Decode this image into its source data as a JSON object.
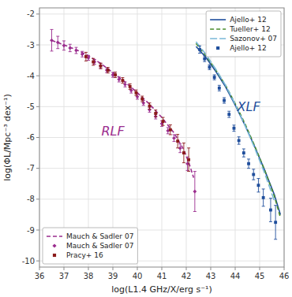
{
  "chart_data": {
    "type": "line",
    "xlabel": "log(L1.4 GHz/X/erg s⁻¹)",
    "ylabel": "log(ΦL/Mpc⁻³ dex⁻¹)",
    "xlim": [
      36,
      46
    ],
    "ylim": [
      -10.2,
      -1.8
    ],
    "xticks": [
      36,
      37,
      38,
      39,
      40,
      41,
      42,
      43,
      44,
      45,
      46
    ],
    "yticks": [
      -2,
      -3,
      -4,
      -5,
      -6,
      -7,
      -8,
      -9,
      -10
    ],
    "grid": true,
    "series": [
      {
        "name": "Ajello+ 12",
        "type": "line",
        "line_style": "solid",
        "color": "#1f4e9c",
        "legend": "upper right",
        "x": [
          42.4,
          42.8,
          43.2,
          43.6,
          44.0,
          44.4,
          44.8,
          45.2,
          45.6,
          45.85
        ],
        "values": [
          -3.05,
          -3.4,
          -3.85,
          -4.35,
          -4.95,
          -5.6,
          -6.3,
          -7.05,
          -7.85,
          -8.5
        ]
      },
      {
        "name": "Tueller+ 12",
        "type": "line",
        "line_style": "dashed",
        "color": "#4a8c2a",
        "legend": "upper right",
        "x": [
          42.4,
          42.8,
          43.2,
          43.6,
          44.0,
          44.4,
          44.8,
          45.2,
          45.6,
          45.85
        ],
        "values": [
          -2.95,
          -3.35,
          -3.8,
          -4.3,
          -4.9,
          -5.55,
          -6.28,
          -7.05,
          -7.9,
          -8.6
        ]
      },
      {
        "name": "Sazonov+ 07",
        "type": "line",
        "line_style": "longdash",
        "color": "#7ab8d8",
        "legend": "upper right",
        "x": [
          42.4,
          42.8,
          43.2,
          43.6,
          44.0,
          44.4,
          44.8,
          45.2,
          45.6
        ],
        "values": [
          -2.9,
          -3.3,
          -3.78,
          -4.3,
          -4.92,
          -5.6,
          -6.35,
          -7.15,
          -8.05
        ]
      },
      {
        "name": "Ajello+ 12",
        "type": "scatter",
        "marker": "square",
        "color": "#1f4e9c",
        "legend": "upper right",
        "x": [
          42.55,
          42.75,
          42.95,
          43.15,
          43.35,
          43.55,
          43.75,
          43.95,
          44.15,
          44.35,
          44.55,
          44.75,
          44.95,
          45.15,
          45.45,
          45.65
        ],
        "values": [
          -3.15,
          -3.45,
          -3.72,
          -4.05,
          -4.4,
          -4.8,
          -5.25,
          -5.7,
          -6.1,
          -6.5,
          -6.85,
          -7.2,
          -7.55,
          -7.95,
          -8.35,
          -8.75
        ],
        "errors": [
          0.12,
          0.09,
          0.08,
          0.08,
          0.09,
          0.09,
          0.1,
          0.1,
          0.12,
          0.13,
          0.15,
          0.17,
          0.22,
          0.28,
          0.38,
          0.55
        ]
      },
      {
        "name": "Mauch & Sadler 07",
        "type": "line",
        "line_style": "dashed",
        "color": "#9b2d8e",
        "legend": "lower left",
        "x": [
          36.5,
          37.0,
          37.5,
          38.0,
          38.5,
          39.0,
          39.5,
          40.0,
          40.5,
          41.0,
          41.5,
          41.9,
          42.1,
          42.3
        ],
        "values": [
          -2.85,
          -3.0,
          -3.15,
          -3.35,
          -3.6,
          -3.9,
          -4.2,
          -4.55,
          -4.92,
          -5.35,
          -5.85,
          -6.4,
          -6.8,
          -7.3
        ]
      },
      {
        "name": "Mauch & Sadler 07",
        "type": "scatter",
        "marker": "diamond",
        "color": "#9b2d8e",
        "legend": "lower left",
        "x": [
          36.5,
          36.75,
          37.0,
          37.25,
          37.5,
          37.75,
          38.0,
          38.25,
          38.5,
          38.75,
          39.0,
          39.25,
          39.5,
          39.75,
          40.0,
          40.25,
          40.5,
          40.75,
          41.0,
          41.25,
          41.5,
          41.75,
          42.05,
          42.35
        ],
        "values": [
          -2.85,
          -2.92,
          -3.02,
          -3.1,
          -3.18,
          -3.3,
          -3.42,
          -3.55,
          -3.68,
          -3.82,
          -3.97,
          -4.12,
          -4.28,
          -4.48,
          -4.68,
          -4.88,
          -5.1,
          -5.32,
          -5.55,
          -5.78,
          -6.02,
          -6.35,
          -6.85,
          -7.75
        ],
        "errors": [
          0.35,
          0.2,
          0.15,
          0.12,
          0.1,
          0.09,
          0.08,
          0.08,
          0.08,
          0.08,
          0.08,
          0.08,
          0.08,
          0.08,
          0.08,
          0.08,
          0.08,
          0.08,
          0.09,
          0.1,
          0.11,
          0.14,
          0.22,
          0.65
        ]
      },
      {
        "name": "Pracy+ 16",
        "type": "scatter",
        "marker": "square",
        "color": "#8b1a1a",
        "legend": "lower left",
        "x": [
          37.9,
          38.2,
          38.5,
          38.8,
          39.1,
          39.4,
          39.7,
          39.95,
          40.2,
          40.5,
          40.75,
          41.05,
          41.35,
          41.65,
          41.9,
          42.1
        ],
        "values": [
          -3.38,
          -3.55,
          -3.68,
          -3.82,
          -3.97,
          -4.15,
          -4.35,
          -4.55,
          -4.75,
          -4.98,
          -5.22,
          -5.48,
          -5.75,
          -6.12,
          -6.5,
          -6.72
        ],
        "errors": [
          0.14,
          0.11,
          0.09,
          0.09,
          0.09,
          0.09,
          0.09,
          0.09,
          0.09,
          0.1,
          0.11,
          0.13,
          0.16,
          0.22,
          0.32,
          0.38
        ]
      }
    ],
    "annotations": [
      {
        "text": "RLF",
        "x": 39.0,
        "y": -5.8,
        "color": "#9b2d8e"
      },
      {
        "text": "XLF",
        "x": 44.55,
        "y": -5.0,
        "color": "#1f4e9c"
      }
    ]
  }
}
